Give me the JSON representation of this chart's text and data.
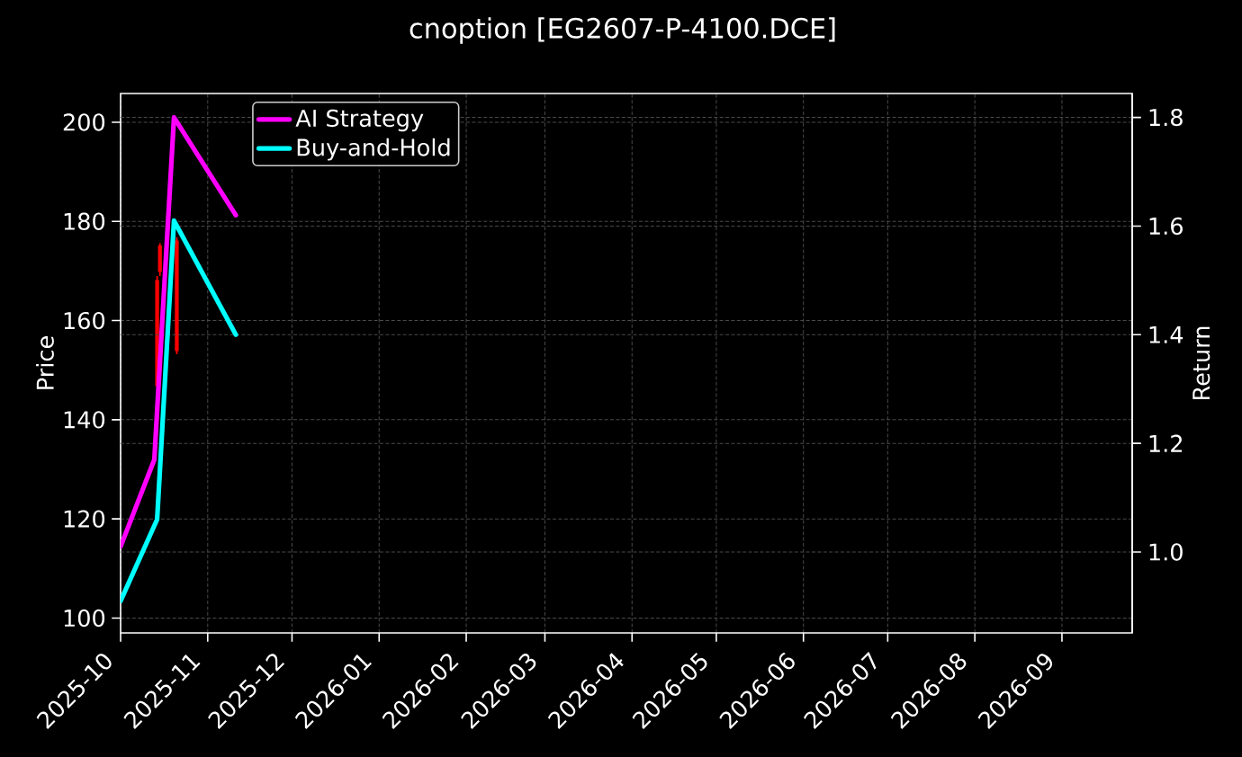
{
  "chart_data": {
    "type": "candlestick",
    "title": "cnoption [EG2607-P-4100.DCE]",
    "ylabel": "Price",
    "y2label": "Return",
    "x": [
      "2025-10-14",
      "2025-10-15",
      "2025-10-21"
    ],
    "ohlc": [
      [
        168,
        169,
        146,
        147
      ],
      [
        175,
        175.6,
        169,
        170
      ],
      [
        176,
        176.8,
        153.2,
        154
      ]
    ],
    "color": "#ff0000",
    "xlim": [
      "2025-10-01",
      "2026-09-26"
    ],
    "xticks": [
      {
        "value": "2025-10-01",
        "label": "2025-10"
      },
      {
        "value": "2025-11-01",
        "label": "2025-11"
      },
      {
        "value": "2025-12-01",
        "label": "2025-12"
      },
      {
        "value": "2026-01-01",
        "label": "2026-01"
      },
      {
        "value": "2026-02-01",
        "label": "2026-02"
      },
      {
        "value": "2026-03-01",
        "label": "2026-03"
      },
      {
        "value": "2026-04-01",
        "label": "2026-04"
      },
      {
        "value": "2026-05-01",
        "label": "2026-05"
      },
      {
        "value": "2026-06-01",
        "label": "2026-06"
      },
      {
        "value": "2026-07-01",
        "label": "2026-07"
      },
      {
        "value": "2026-08-01",
        "label": "2026-08"
      },
      {
        "value": "2026-09-01",
        "label": "2026-09"
      }
    ],
    "ylim": [
      97,
      205.8
    ],
    "yticks": [
      100,
      120,
      140,
      160,
      180,
      200
    ],
    "y2lim": [
      0.851,
      1.844
    ],
    "y2ticks": [
      {
        "value": 1,
        "label": "1.0"
      },
      1.2,
      1.4,
      1.6,
      1.8
    ],
    "series": [
      {
        "name": "AI Strategy",
        "type": "line",
        "axis": "y2",
        "color": "#ff00ff",
        "x": [
          "2025-10-01",
          "2025-10-13",
          "2025-10-20",
          "2025-11-11"
        ],
        "values": [
          1.01,
          1.17,
          1.8,
          1.62
        ]
      },
      {
        "name": "Buy-and-Hold",
        "type": "line",
        "axis": "y2",
        "color": "#00ffff",
        "x": [
          "2025-10-01",
          "2025-10-14",
          "2025-10-20",
          "2025-11-11"
        ],
        "values": [
          0.91,
          1.06,
          1.61,
          1.4
        ]
      }
    ],
    "grid": true,
    "legend": "top left"
  }
}
